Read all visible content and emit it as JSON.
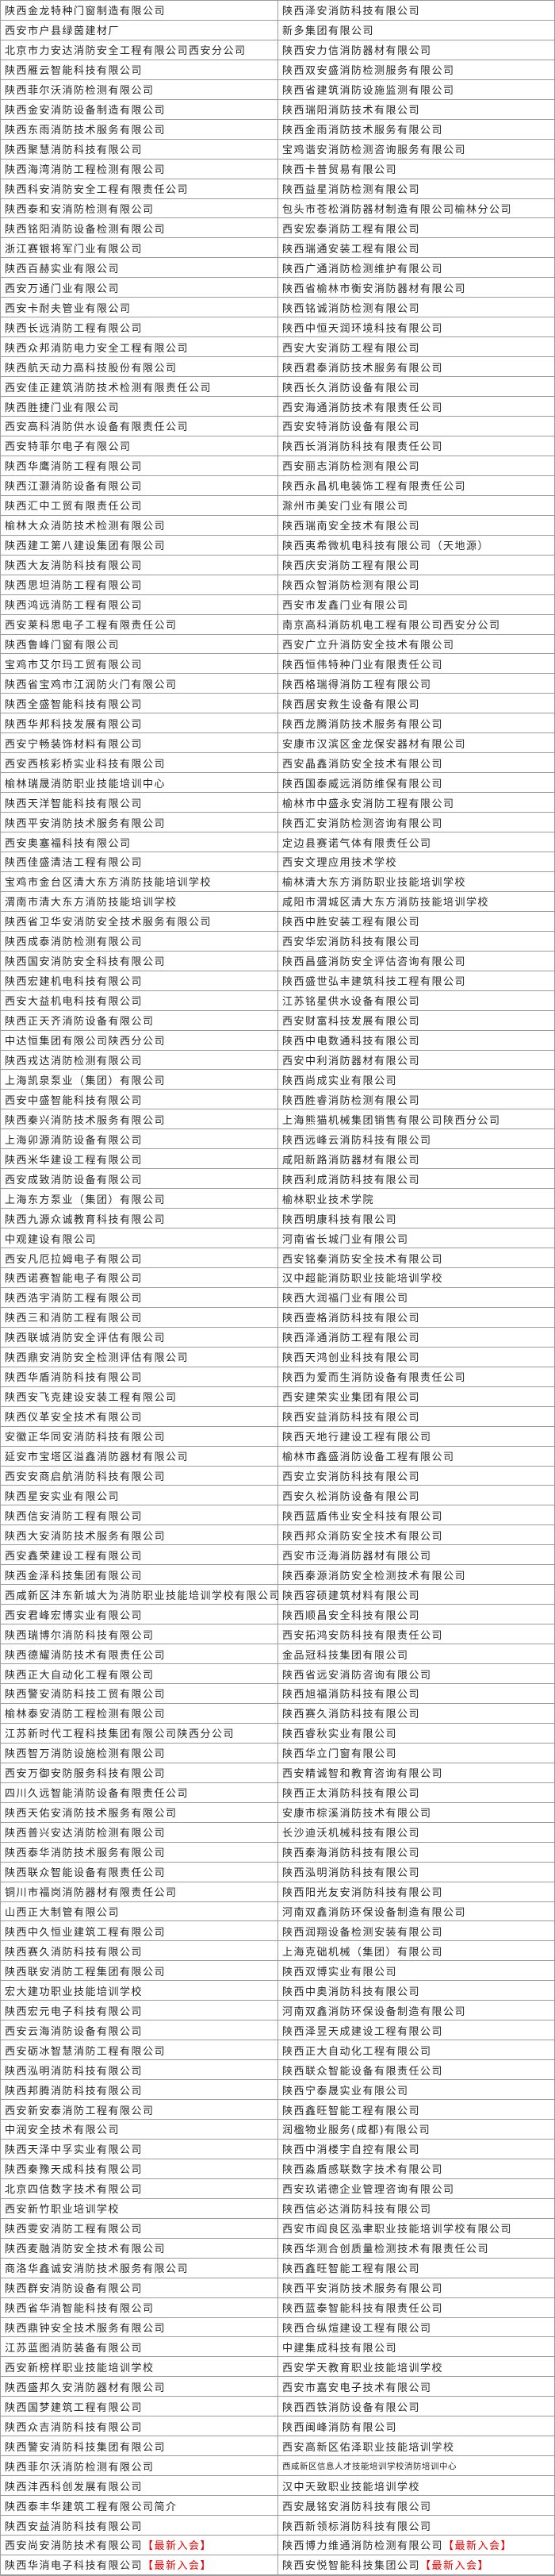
{
  "badge_label": "【最新入会】",
  "colors": {
    "background": "#ffffff",
    "border": "#9c9c9c",
    "text": "#262626",
    "badge_red": "#e60000"
  },
  "list": {
    "left": [
      "陕西金龙特种门窗制造有限公司",
      "西安市户县绿茵建材厂",
      "北京市力安达消防安全工程有限公司西安分公司",
      "陕西雁云智能科技有限公司",
      "陕西菲尔沃消防检测有限公司",
      "陕西金安消防设备制造有限公司",
      "陕西东雨消防技术服务有限公司",
      "陕西聚慧消防科技有限公司",
      "陕西海湾消防工程检测有限公司",
      "陕西科安消防安全工程有限责任公司",
      "陕西泰和安消防检测有限公司",
      "陕西铭阳消防设备检测有限公司",
      "浙江赛银将军门业有限公司",
      "陕西百赫实业有限公司",
      "西安万通门业有限公司",
      "西安卡耐夫管业有限公司",
      "陕西长远消防工程有限公司",
      "陕西众邦消防电力安全工程有限公司",
      "陕西航天动力高科技股份有限公司",
      "西安佳正建筑消防技术检测有限责任公司",
      "陕西胜捷门业有限公司",
      "西安高科消防供水设备有限责任公司",
      "西安特菲尔电子有限公司",
      "陕西华鹰消防工程有限公司",
      "陕西江灏消防设备有限公司",
      "陕西汇中工贸有限责任公司",
      "榆林大众消防技术检测有限公司",
      "陕西建工第八建设集团有限公司",
      "陕西大友消防科技有限公司",
      "陕西思坦消防工程有限公司",
      "陕西鸿远消防工程有限公司",
      "西安莱科思电子工程有限责任公司",
      "陕西鲁峰门窗有限公司",
      "宝鸡市艾尔玛工贸有限公司",
      "陕西省宝鸡市江润防火门有限公司",
      "陕西全盛智能科技有限公司",
      "陕西华邦科技发展有限公司",
      "西安宁畅装饰材料有限公司",
      "西安西核彩桥实业科技有限公司",
      "榆林瑞晟消防职业技能培训中心",
      "陕西天洋智能科技有限公司",
      "陕西平安消防技术服务有限公司",
      "西安奥塞福科技有限公司",
      "陕西佳盛清洁工程有限公司",
      "宝鸡市金台区清大东方消防技能培训学校",
      "渭南市清大东方消防技能培训学校",
      "陕西省卫华安消防安全技术服务有限公司",
      "陕西成泰消防检测有限公司",
      "陕西国安消防安全科技有限公司",
      "陕西宏建机电科技有限公司",
      "西安大益机电科技有限公司",
      "陕西正天齐消防设备有限公司",
      "中达恒集团有限公司陕西分公司",
      "陕西戎达消防检测有限公司",
      "上海凯泉泵业（集团）有限公司",
      "西安中盛智能科技有限公司",
      "陕西秦兴消防技术服务有限公司",
      "上海卯源消防设备有限公司",
      "陕西米华建设工程有限公司",
      "西安成致消防设备有限公司",
      "上海东方泵业（集团）有限公司",
      "陕西九源众诚教育科技有限公司",
      "中观建设有限公司",
      "西安凡厄拉姆电子有限公司",
      "陕西诺赛智能电子有限公司",
      "陕西浩宇消防工程有限公司",
      "陕西三和消防工程有限公司",
      "陕西联城消防安全评估有限公司",
      "陕西鼎安消防安全检测评估有限公司",
      "陕西华盾消防科技有限公司",
      "陕西安飞克建设安装工程有限公司",
      "陕西仪革安全技术有限公司",
      "安徽正华同安消防科技有限公司",
      "延安市宝塔区溢鑫消防器材有限公司",
      "西安安商启航消防科技有限公司",
      "陕西星安实业有限公司",
      "陕西信安消防工程有限公司",
      "陕西大安消防技术服务有限公司",
      "西安鑫荣建设工程有限公司",
      "陕西金泽科技集团有限公司",
      "西咸新区沣东新城大为消防职业技能培训学校有限公司",
      "西安君峰宏博实业有限公司",
      "陕西瑞博尔消防科技有限公司",
      "陕西德耀消防技术有限责任公司",
      "陕西正大自动化工程有限公司",
      "陕西警安消防科技工贸有限公司",
      "榆林泰安消防工程检测有限公司",
      "江苏新时代工程科技集团有限公司陕西分公司",
      "陕西智万消防设施检测有限公司",
      "西安万御安防服务科技有限公司",
      "四川久远智能消防设备有限责任公司",
      "陕西天佑安消防技术服务有限公司",
      "陕西普兴安达消防检测有限公司",
      "陕西泰华消防技术服务有限公司",
      "陕西联众智能设备有限责任公司",
      "铜川市福岗消防器材有限责任公司",
      "山西正大制管有限公司",
      "陕西中久恒业建筑工程有限公司",
      "陕西赛久消防科技有限公司",
      "陕西联安消防工程集团有限公司",
      "宏大建功职业技能培训学校",
      "陕西宏元电子科技有限公司",
      "西安云海消防设备有限公司",
      "西安砺冰智慧消防工程有限公司",
      "陕西泓明消防科技有限公司",
      "陕西邦腾消防科技有限公司",
      "西安新安泰消防工程有限公司",
      "中润安全技术有限公司",
      "陕西天泽中孚实业有限公司",
      "陕西秦豫天成科技有限公司",
      "北京四信数字技术有限公司",
      "西安新竹职业培训学校",
      "陕西雯安消防工程有限公司",
      "陕西麦融消防安全技术有限公司",
      "商洛华鑫诚安消防技术服务有限公司",
      "陕西群安消防设备有限公司",
      "陕西省华消智能科技有限公司",
      "陕西鼎钟安全技术服务有限公司",
      "江苏蓝图消防装备有限公司",
      "西安新榜样职业技能培训学校",
      "陕西盛邦久安消防器材有限公司",
      "陕西国梦建筑工程有限公司",
      "陕西众吉消防科技有限公司",
      "陕西警安消防科技集团有限公司",
      "陕西菲尔沃消防检测有限公司",
      "陕西沣西科创发展有限公司",
      "陕西泰丰华建筑工程有限公司简介",
      "陕西安益消防科技有限公司",
      {
        "t": "西安尚安消防技术有限公司 ",
        "badge": true
      },
      {
        "t": "陕西华消电子科技有限公司",
        "badge": true
      }
    ],
    "right": [
      "陕西泽安消防科技有限公司",
      "新多集团有限公司",
      "陕西安力信消防器材有限公司",
      "陕西双安盛消防检测服务有限公司",
      "陕西省建筑消防设施监测有限公司",
      "陕西瑞阳消防技术有限公司",
      "陕西金雨消防技术服务有限公司",
      "宝鸡谐安消防检测咨询服务有限公司",
      "陕西卡普贸易有限公司",
      "陕西益星消防检测有限公司",
      "包头市苍松消防器材制造有限公司榆林分公司",
      "西安宏泰消防工程有限公司",
      "陕西瑞通安装工程有限公司",
      "陕西广通消防检测维护有限公司",
      "陕西省榆林市衡安消防器材有限公司",
      "陕西铭诚消防检测有限公司",
      "陕西中恒天润环境科技有限公司",
      "西安大安消防工程有限公司",
      "陕西君泰消防技术服务有限公司",
      "陕西长久消防设备有限公司",
      "西安海通消防技术有限责任公司",
      "西安安特消防设备有限公司",
      "陕西长消消防科技有限责任公司",
      "西安丽志消防检测有限公司",
      "陕西永昌机电装饰工程有限责任公司",
      "滁州市美安门业有限公司",
      "陕西瑞南安全技术有限公司",
      "陕西夷希微机电科技有限公司（天地源）",
      "陕西庆安消防工程有限公司",
      "陕西众智消防检测有限公司",
      "西安市发鑫门业有限公司",
      "南京高科消防机电工程有限公司西安分公司",
      "西安广立升消防安全技术有限公司",
      "陕西恒伟特种门业有限责任公司",
      "陕西格瑞得消防工程有限公司",
      "陕西居安救生设备有限公司",
      "陕西龙腾消防技术服务有限公司",
      "安康市汉滨区金龙保安器材有限公司",
      "西安晶鑫消防安全技术有限公司",
      "陕西国泰威远消防维保有限公司",
      "榆林市中盛永安消防工程有限公司",
      "陕西汇安消防检测咨询有限公司",
      "定边县赛诺气体有限责任公司",
      "西安文理应用技术学校",
      "榆林清大东方消防职业技能培训学校",
      "咸阳市渭城区清大东方消防技能培训学校",
      "陕西中胜安装工程有限公司",
      "西安华宏消防科技有限公司",
      "陕西昌盛消防安全评估咨询有限公司",
      "陕西盛世弘丰建筑科技工程有限公司",
      "江苏铭星供水设备有限公司",
      "西安财富科技发展有限公司",
      "陕西中电数通科技有限公司",
      "西安中利消防器材有限公司",
      "陕西尚成实业有限公司",
      "陕西胜睿消防检测有限公司",
      "上海熊猫机械集团销售有限公司陕西分公司",
      "陕西远峰云消防科技有限公司",
      "咸阳新路消防器材有限公司",
      "陕西利成消防科技有限公司",
      "榆林职业技术学院",
      "陕西明康科技有限公司",
      "河南省长城门业有限公司",
      "西安铭秦消防安全技术有限公司",
      "汉中超能消防职业技能培训学校",
      "陕西大润福门业有限公司",
      "陕西壹格消防科技有限公司",
      "陕西泽通消防工程有限公司",
      "陕西天鸿创业科技有限公司",
      "陕西为爱而生消防设备有限责任公司",
      "西安建荣实业集团有限公司",
      "陕西安益消防科技有限公司",
      "陕西天地行建设工程有限公司",
      "榆林市鑫盛消防设备工程有限公司",
      "西安立安消防科技有限公司",
      "西安久松消防设备有限公司",
      "陕西蓝盾伟业安全科技有限公司",
      "陕西邦众消防安全技术有限公司",
      "西安市泛海消防器材有限公司",
      "陕西秦源消防安全检测技术有限公司",
      "陕西容硕建筑材料有限公司",
      "陕西顺昌安全科技有限公司",
      "西安拓鸿安防科技有限责任公司",
      "金品冠科技集团有限公司",
      "陕西省远安消防咨询有限公司",
      "陕西旭福消防科技有限公司",
      "陕西赛久消防科技有限公司",
      "陕西睿秋实业有限公司",
      "陕西华立门窗有限公司",
      "西安精诚智和教育咨询有限公司",
      "陕西正太消防科技有限公司",
      "安康市棕溪消防技术有限公司",
      "长沙迪沃机械科技有限公司",
      "陕西秦海消防科技有限公司",
      "陕西泓明消防科技有限公司",
      "陕西阳光友安消防科技有限公司",
      "河南双鑫消防环保设备制造有限公司",
      "陕西润翔设备检测安装有限公司",
      "上海克础机械（集团）有限公司",
      "陕西双博实业有限公司",
      "陕西中奥消防科技有限公司",
      "河南双鑫消防环保设备制造有限公司",
      "陕西泽昱天成建设工程有限公司",
      "陕西正大自动化工程有限公司",
      "陕西联众智能设备有限责任公司",
      "陕西宁泰晟实业有限公司",
      "陕西鑫旺智能工程有限公司",
      "润楹物业服务(成都)有限公司",
      "陕西中消楼宇自控有限公司",
      "陕西淼盾感联数字技术有限公司",
      "西安玖诺德企业管理咨询有限公司",
      "陕西信必达消防科技有限公司",
      "西安市阎良区泓聿职业技能培训学校有限公司",
      "陕西华测合创质量检测技术有限责任公司",
      "陕西鑫旺智能工程有限公司",
      "陕西平安消防技术服务有限公司",
      "陕西蓝泰智能科技有限责任公司",
      "陕西合纵煊建设工程有限公司",
      "中建集成科技有限公司",
      "西安学天教育职业技能培训学校",
      "西安市嘉安电子技术有限公司",
      "陕西西铁消防设备有限公司",
      "陕西闽峰消防有限公司",
      "西安高新区佑泽职业技能培训学校",
      {
        "t": "西咸新区信息人才技能培训学校消防培训中心",
        "small": true
      },
      "汉中天致职业技能培训学校",
      "西安晟铭安消防科技有限公司",
      "陕西新领标消防科技有限公司",
      {
        "t": "陕西博力维通消防检测有限公司",
        "badge": true
      },
      {
        "t": "陕西安悦智能科技集团公司 ",
        "badge": true
      }
    ]
  }
}
